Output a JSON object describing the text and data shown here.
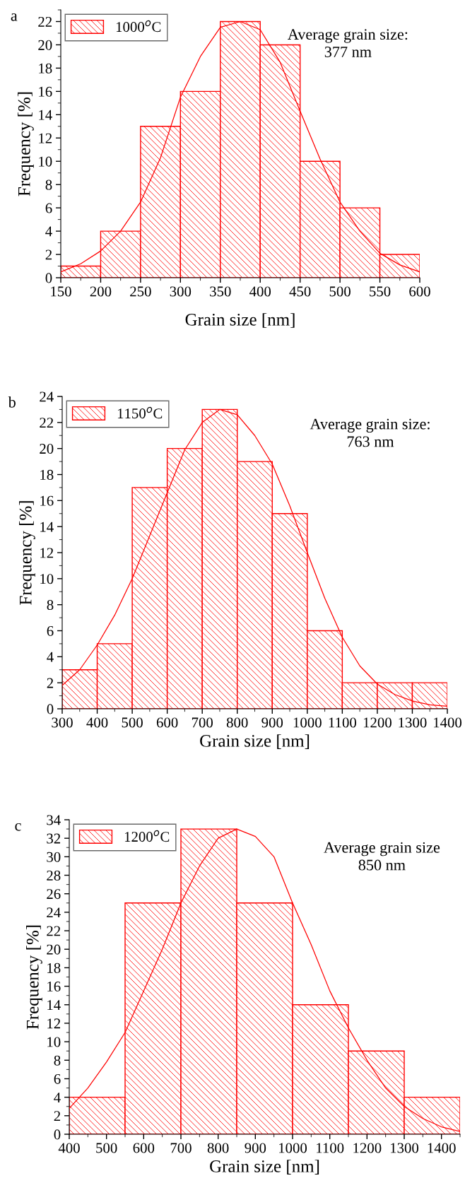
{
  "chart_data": [
    {
      "type": "histogram",
      "xlabel": "Grain size [nm]",
      "ylabel": "Frequency [%]",
      "bins": [
        150,
        200,
        250,
        300,
        350,
        400,
        450,
        500,
        550,
        600
      ],
      "series": [
        {
          "name": "1000$^{o}$C",
          "color": "#ff0000",
          "values": [
            1,
            4,
            13,
            16,
            22,
            20,
            10,
            6,
            2
          ]
        },
        {
          "type": "line",
          "color": "#ff0000",
          "x": [
            150,
            175,
            200,
            225,
            250,
            275,
            300,
            325,
            350,
            375,
            400,
            425,
            450,
            475,
            500,
            525,
            550,
            575,
            600
          ],
          "values": [
            0.5,
            1.2,
            2.3,
            4,
            6.5,
            10.3,
            15.5,
            19,
            21.5,
            22,
            21.3,
            18.5,
            14.3,
            10.2,
            6.5,
            4,
            2.1,
            1.1,
            0.5
          ]
        }
      ],
      "xlim": [
        150,
        600
      ],
      "xticks": [
        150,
        200,
        250,
        300,
        350,
        400,
        450,
        500,
        550,
        600
      ],
      "ylim": [
        0,
        23
      ],
      "yticks": [
        0,
        2,
        4,
        6,
        8,
        10,
        12,
        14,
        16,
        18,
        20,
        22
      ],
      "annotations": [
        "a",
        "Average grain size:\n377 nm"
      ],
      "legend": "top left",
      "grid": false
    },
    {
      "type": "histogram",
      "xlabel": "Grain size [nm]",
      "ylabel": "Frequency [%]",
      "bins": [
        300,
        400,
        500,
        600,
        700,
        800,
        900,
        1000,
        1100,
        1200,
        1300,
        1400
      ],
      "series": [
        {
          "name": "1150$^{o}$C",
          "color": "#ff0000",
          "values": [
            3,
            5,
            17,
            20,
            23,
            19,
            15,
            6,
            2,
            2,
            2
          ]
        },
        {
          "type": "line",
          "color": "#ff0000",
          "x": [
            300,
            350,
            400,
            450,
            500,
            550,
            600,
            650,
            700,
            750,
            800,
            850,
            900,
            950,
            1000,
            1050,
            1100,
            1150,
            1200,
            1250,
            1300,
            1350,
            1400
          ],
          "values": [
            1.8,
            3,
            4.9,
            7.2,
            10,
            13.3,
            16.6,
            19.9,
            22,
            23,
            22.6,
            21,
            18.8,
            15.6,
            12,
            8.5,
            5.5,
            3.3,
            1.9,
            1.1,
            0.6,
            0.3,
            0.2
          ]
        }
      ],
      "xlim": [
        300,
        1400
      ],
      "xticks": [
        300,
        400,
        500,
        600,
        700,
        800,
        900,
        1000,
        1100,
        1200,
        1300,
        1400
      ],
      "ylim": [
        0,
        24
      ],
      "yticks": [
        0,
        2,
        4,
        6,
        8,
        10,
        12,
        14,
        16,
        18,
        20,
        22,
        24
      ],
      "annotations": [
        "b",
        "Average grain size:\n763 nm"
      ],
      "legend": "top left",
      "grid": false
    },
    {
      "type": "histogram",
      "xlabel": "Grain size [nm]",
      "ylabel": "Frequency [%]",
      "bins": [
        400,
        550,
        700,
        850,
        1000,
        1150,
        1300,
        1450
      ],
      "series": [
        {
          "name": "1200$^{o}$C",
          "color": "#ff0000",
          "values": [
            4,
            25,
            33,
            25,
            14,
            9,
            4
          ]
        },
        {
          "type": "line",
          "color": "#ff0000",
          "x": [
            400,
            450,
            500,
            550,
            600,
            650,
            700,
            750,
            800,
            850,
            900,
            950,
            1000,
            1050,
            1100,
            1150,
            1200,
            1250,
            1300,
            1350,
            1400,
            1450
          ],
          "values": [
            2.8,
            5,
            7.8,
            11,
            15.5,
            20,
            25,
            29,
            32,
            33,
            32.2,
            30,
            25,
            20.5,
            15.5,
            11.5,
            8,
            5,
            3,
            1.7,
            0.8,
            0.3
          ]
        }
      ],
      "xlim": [
        400,
        1450
      ],
      "xticks": [
        400,
        500,
        600,
        700,
        800,
        900,
        1000,
        1100,
        1200,
        1300,
        1400
      ],
      "ylim": [
        0,
        34
      ],
      "yticks": [
        0,
        2,
        4,
        6,
        8,
        10,
        12,
        14,
        16,
        18,
        20,
        22,
        24,
        26,
        28,
        30,
        32,
        34
      ],
      "annotations": [
        "c",
        "Average grain size\n850 nm"
      ],
      "legend": "top left",
      "grid": false
    }
  ]
}
